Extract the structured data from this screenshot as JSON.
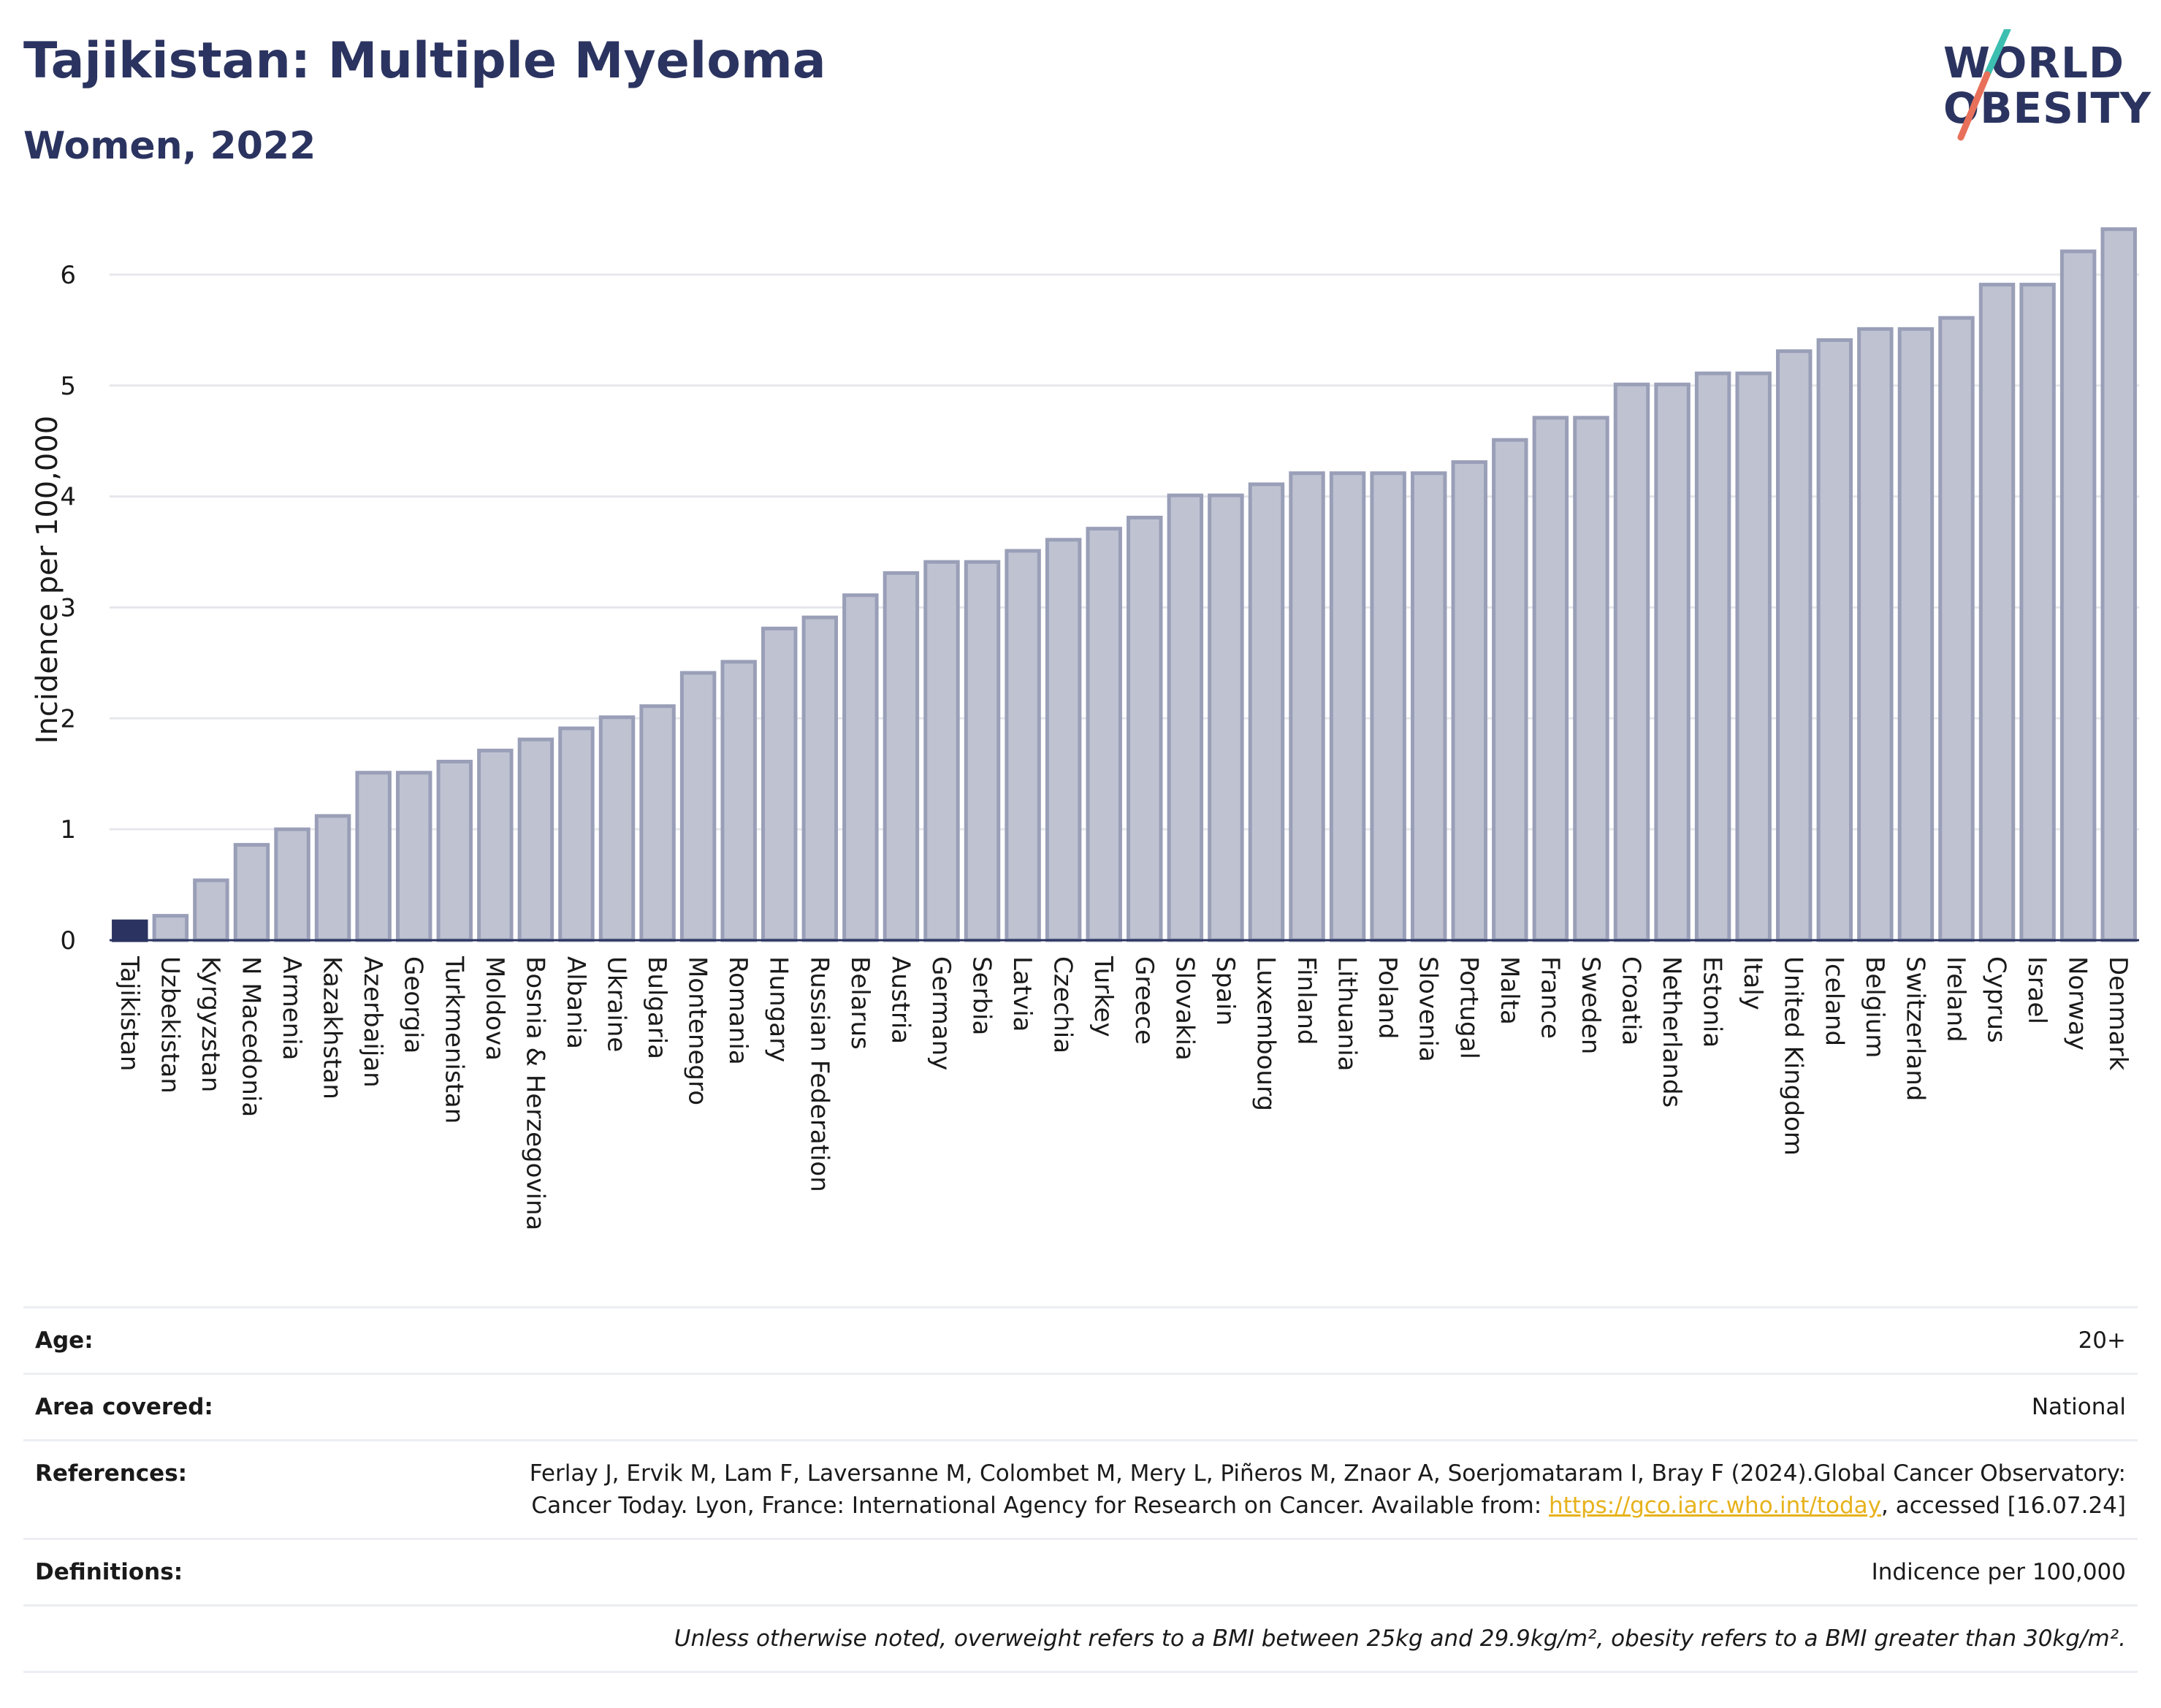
{
  "header": {
    "title": "Tajikistan: Multiple Myeloma",
    "subtitle": "Women, 2022"
  },
  "logo": {
    "line1": "WORLD",
    "line2": "OBESITY",
    "slash_colors": [
      "#3cbfb0",
      "#e8705a"
    ]
  },
  "colors": {
    "highlight": "#2b3460",
    "bar_fill": "#bfc2d1",
    "bar_stroke": "#9a9fb8",
    "grid": "#e6e7ec",
    "link": "#e7b21c"
  },
  "chart_data": {
    "type": "bar",
    "ylabel": "Incidence per 100,000",
    "ylim": [
      0,
      6.5
    ],
    "yticks": [
      0,
      1,
      2,
      3,
      4,
      5,
      6
    ],
    "highlight": "Tajikistan",
    "grid": true,
    "categories": [
      "Tajikistan",
      "Uzbekistan",
      "Kyrgyzstan",
      "N Macedonia",
      "Armenia",
      "Kazakhstan",
      "Azerbaijan",
      "Georgia",
      "Turkmenistan",
      "Moldova",
      "Bosnia & Herzegovina",
      "Albania",
      "Ukraine",
      "Bulgaria",
      "Montenegro",
      "Romania",
      "Hungary",
      "Russian Federation",
      "Belarus",
      "Austria",
      "Germany",
      "Serbia",
      "Latvia",
      "Czechia",
      "Turkey",
      "Greece",
      "Slovakia",
      "Spain",
      "Luxembourg",
      "Finland",
      "Lithuania",
      "Poland",
      "Slovenia",
      "Portugal",
      "Malta",
      "France",
      "Sweden",
      "Croatia",
      "Netherlands",
      "Estonia",
      "Italy",
      "United Kingdom",
      "Iceland",
      "Belgium",
      "Switzerland",
      "Ireland",
      "Cyprus",
      "Israel",
      "Norway",
      "Denmark"
    ],
    "values": [
      0.17,
      0.22,
      0.54,
      0.86,
      1.0,
      1.12,
      1.51,
      1.51,
      1.61,
      1.71,
      1.81,
      1.91,
      2.01,
      2.11,
      2.41,
      2.51,
      2.81,
      2.91,
      3.11,
      3.31,
      3.41,
      3.41,
      3.51,
      3.61,
      3.71,
      3.81,
      4.01,
      4.01,
      4.11,
      4.21,
      4.21,
      4.21,
      4.21,
      4.31,
      4.51,
      4.71,
      4.71,
      5.01,
      5.01,
      5.11,
      5.11,
      5.31,
      5.41,
      5.51,
      5.51,
      5.61,
      5.91,
      5.91,
      6.21,
      6.41
    ]
  },
  "info": {
    "age_label": "Age:",
    "age_value": "20+",
    "area_label": "Area covered:",
    "area_value": "National",
    "references_label": "References:",
    "references_text": "Ferlay J, Ervik M, Lam F, Laversanne M, Colombet M, Mery L, Piñeros M, Znaor A, Soerjomataram I, Bray F (2024).Global Cancer Observatory: Cancer Today. Lyon, France: International Agency for Research on Cancer. Available from: ",
    "references_link": "https://gco.iarc.who.int/today",
    "references_tail": ", accessed [16.07.24]",
    "definitions_label": "Definitions:",
    "definitions_value": "Indicence per 100,000",
    "note": "Unless otherwise noted, overweight refers to a BMI between 25kg and 29.9kg/m², obesity refers to a BMI greater than 30kg/m²."
  }
}
